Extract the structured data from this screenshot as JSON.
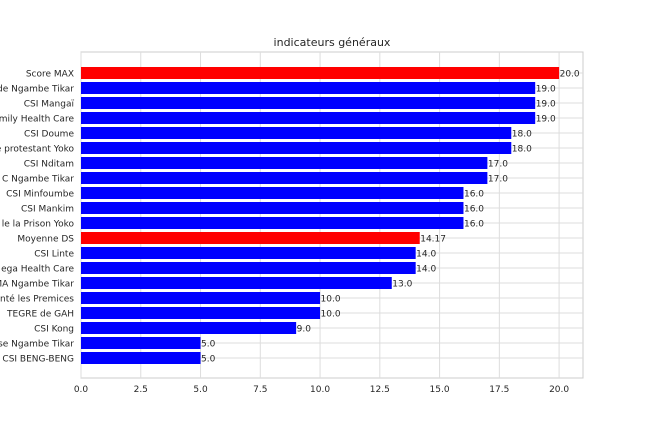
{
  "chart_data": {
    "type": "bar",
    "orientation": "horizontal",
    "title": "indicateurs généraux",
    "xlabel": "",
    "ylabel": "",
    "xlim": [
      0,
      21
    ],
    "xticks": [
      "0.0",
      "2.5",
      "5.0",
      "7.5",
      "10.0",
      "12.5",
      "15.0",
      "17.5",
      "20.0"
    ],
    "grid": true,
    "highlight_color": "#ff0000",
    "bar_color": "#0000ff",
    "categories": [
      "Score MAX",
      "de Ngambe Tikar",
      "CSI Mangaï",
      "mily Health Care",
      "CSI Doume",
      "e protestant Yoko",
      "CSI Nditam",
      "C Ngambe Tikar",
      "CSI Minfoumbe",
      "CSI Mankim",
      "le la Prison Yoko",
      "Moyenne DS",
      "CSI Linte",
      "ega Health  Care",
      "MA Ngambe Tikar",
      "nté les Premices",
      "TEGRE  de GAH",
      "CSI Kong",
      "se Ngambe Tikar",
      "CSI BENG-BENG"
    ],
    "values": [
      20.0,
      19.0,
      19.0,
      19.0,
      18.0,
      18.0,
      17.0,
      17.0,
      16.0,
      16.0,
      16.0,
      14.17,
      14.0,
      14.0,
      13.0,
      10.0,
      10.0,
      9.0,
      5.0,
      5.0
    ],
    "value_labels": [
      "20.0",
      "19.0",
      "19.0",
      "19.0",
      "18.0",
      "18.0",
      "17.0",
      "17.0",
      "16.0",
      "16.0",
      "16.0",
      "14.17",
      "14.0",
      "14.0",
      "13.0",
      "10.0",
      "10.0",
      "9.0",
      "5.0",
      "5.0"
    ],
    "highlighted": [
      "Score MAX",
      "Moyenne DS"
    ]
  }
}
